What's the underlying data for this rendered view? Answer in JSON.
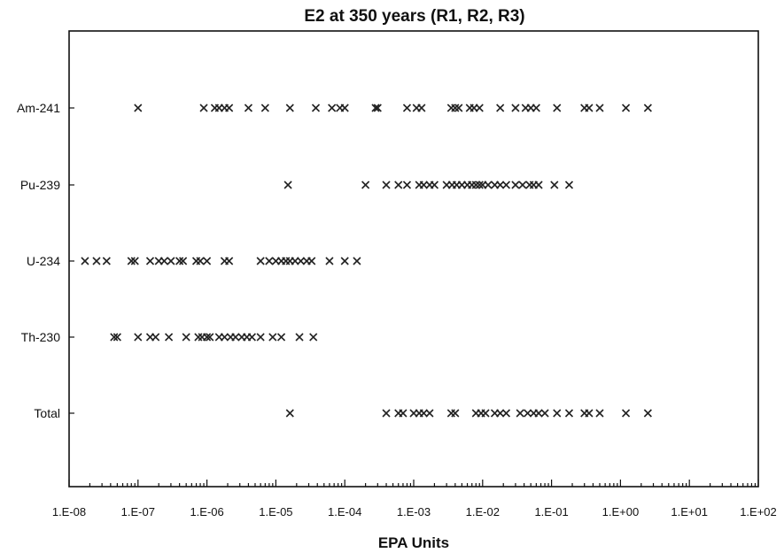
{
  "chart_data": {
    "type": "scatter",
    "title": "E2 at 350 years (R1, R2, R3)",
    "xlabel": "EPA Units",
    "ylabel": "",
    "xscale": "log",
    "xlim": [
      1e-08,
      100
    ],
    "x_tick_labels": [
      "1.E-08",
      "1.E-07",
      "1.E-06",
      "1.E-05",
      "1.E-04",
      "1.E-03",
      "1.E-02",
      "1.E-01",
      "1.E+00",
      "1.E+01",
      "1.E+02"
    ],
    "categories": [
      "Am-241",
      "Pu-239",
      "U-234",
      "Th-230",
      "Total"
    ],
    "marker": "x",
    "series": [
      {
        "category": "Am-241",
        "values": [
          1e-07,
          9e-07,
          1.3e-06,
          1.5e-06,
          1.8e-06,
          2.1e-06,
          4e-06,
          7e-06,
          1.6e-05,
          3.8e-05,
          6.5e-05,
          8.5e-05,
          0.0001,
          0.00028,
          0.0003,
          0.0008,
          0.0011,
          0.0013,
          0.0035,
          0.004,
          0.0045,
          0.0065,
          0.0075,
          0.009,
          0.018,
          0.03,
          0.042,
          0.05,
          0.06,
          0.12,
          0.3,
          0.35,
          0.5,
          1.2,
          2.5
        ]
      },
      {
        "category": "Pu-239",
        "values": [
          1.5e-05,
          0.0002,
          0.0004,
          0.0006,
          0.0008,
          0.0012,
          0.0014,
          0.0017,
          0.002,
          0.003,
          0.0036,
          0.0042,
          0.005,
          0.006,
          0.007,
          0.008,
          0.009,
          0.01,
          0.012,
          0.015,
          0.018,
          0.022,
          0.03,
          0.038,
          0.048,
          0.055,
          0.065,
          0.11,
          0.18
        ]
      },
      {
        "category": "U-234",
        "values": [
          1.7e-08,
          2.5e-08,
          3.5e-08,
          8e-08,
          9e-08,
          1.5e-07,
          2e-07,
          2.4e-07,
          3e-07,
          4e-07,
          4.5e-07,
          7e-07,
          8e-07,
          1e-06,
          1.8e-06,
          2.1e-06,
          6e-06,
          8e-06,
          1e-05,
          1.2e-05,
          1.4e-05,
          1.6e-05,
          1.9e-05,
          2.3e-05,
          2.8e-05,
          3.3e-05,
          6e-05,
          0.0001,
          0.00015
        ]
      },
      {
        "category": "Th-230",
        "values": [
          4.5e-08,
          5e-08,
          1e-07,
          1.5e-07,
          1.8e-07,
          2.8e-07,
          5e-07,
          7.5e-07,
          8.5e-07,
          1e-06,
          1.1e-06,
          1.5e-06,
          1.8e-06,
          2.2e-06,
          2.6e-06,
          3.2e-06,
          3.8e-06,
          4.5e-06,
          6e-06,
          9e-06,
          1.2e-05,
          2.2e-05,
          3.5e-05
        ]
      },
      {
        "category": "Total",
        "values": [
          1.6e-05,
          0.0004,
          0.0006,
          0.0007,
          0.001,
          0.0012,
          0.0014,
          0.0017,
          0.0035,
          0.004,
          0.008,
          0.0095,
          0.011,
          0.015,
          0.018,
          0.022,
          0.035,
          0.045,
          0.055,
          0.065,
          0.08,
          0.12,
          0.18,
          0.3,
          0.35,
          0.5,
          1.2,
          2.5
        ]
      }
    ],
    "grid": false,
    "legend": "none"
  }
}
